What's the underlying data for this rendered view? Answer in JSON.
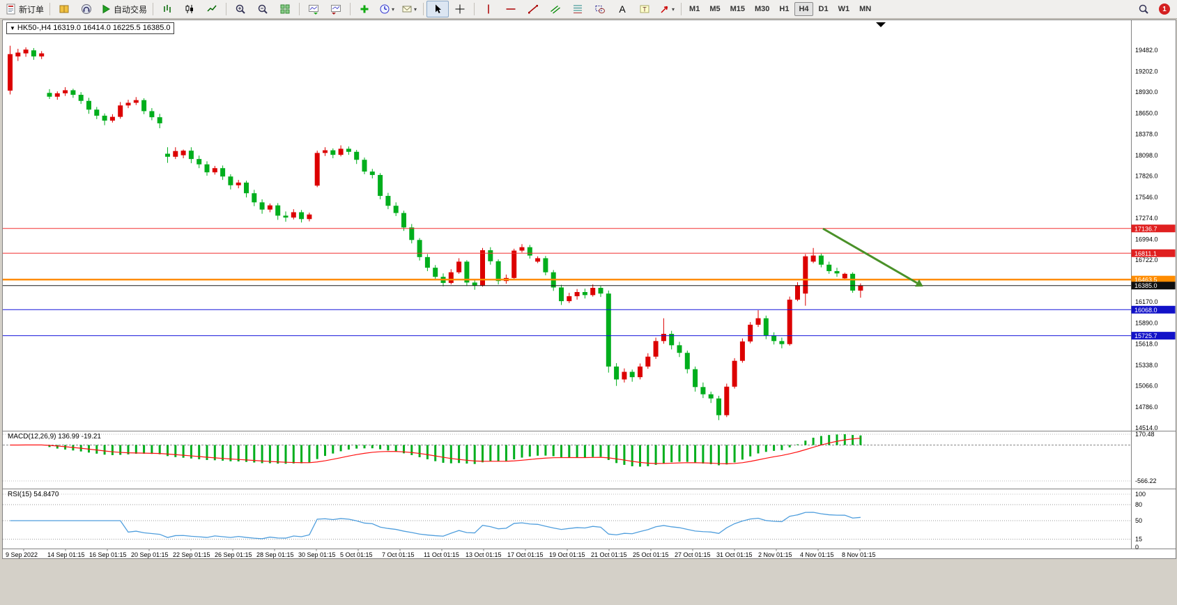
{
  "toolbar": {
    "groups": [
      [
        {
          "name": "new-order",
          "icon": "doc-plus",
          "label": "新订单"
        }
      ],
      [
        {
          "name": "market-watch",
          "icon": "book-yellow"
        },
        {
          "name": "data-window",
          "icon": "headset"
        },
        {
          "name": "auto-trading",
          "icon": "play-green",
          "label": "自动交易"
        }
      ],
      [
        {
          "name": "chart-bars",
          "icon": "bars"
        },
        {
          "name": "chart-candles",
          "icon": "candles"
        },
        {
          "name": "chart-line",
          "icon": "line"
        }
      ],
      [
        {
          "name": "zoom-in",
          "icon": "zoom-in"
        },
        {
          "name": "zoom-out",
          "icon": "zoom-out"
        },
        {
          "name": "tile-windows",
          "icon": "grid-green"
        }
      ],
      [
        {
          "name": "auto-scroll",
          "icon": "chart-scroll"
        },
        {
          "name": "chart-shift",
          "icon": "chart-shift"
        }
      ],
      [
        {
          "name": "indicators",
          "icon": "plus-green"
        },
        {
          "name": "periods",
          "icon": "clock",
          "dropdown": true
        },
        {
          "name": "templates",
          "icon": "chart-mail",
          "dropdown": true
        }
      ],
      [
        {
          "name": "cursor",
          "icon": "cursor",
          "active": true
        },
        {
          "name": "crosshair",
          "icon": "crosshair"
        }
      ],
      [
        {
          "name": "vertical-line",
          "icon": "vline"
        },
        {
          "name": "horizontal-line",
          "icon": "hline"
        },
        {
          "name": "trendline",
          "icon": "tline"
        },
        {
          "name": "equidistant-channel",
          "icon": "channel"
        },
        {
          "name": "fibonacci",
          "icon": "fibo"
        },
        {
          "name": "shapes",
          "icon": "shapes"
        },
        {
          "name": "text",
          "icon": "textA"
        },
        {
          "name": "text-label",
          "icon": "labelT"
        },
        {
          "name": "arrows",
          "icon": "arrow",
          "dropdown": true
        }
      ]
    ],
    "timeframes": {
      "options": [
        "M1",
        "M5",
        "M15",
        "M30",
        "H1",
        "H4",
        "D1",
        "W1",
        "MN"
      ],
      "active": "H4"
    },
    "right": {
      "notification_count": "1"
    }
  },
  "chart": {
    "symbol_marker": "▼",
    "symbol_text": "HK50-,H4  16319.0 16414.0 16225.5 16385.0",
    "macd_label": "MACD(12,26,9) 136.99 -19.21",
    "rsi_label": "RSI(15) 54.8470"
  },
  "colors": {
    "bull": "#dc0000",
    "bear": "#00ae1c",
    "macd_hist": "#00ae1c",
    "macd_signal": "#ff1010",
    "rsi_line": "#4f9edd",
    "resistance_line": "#f23030",
    "resistance_badge": "#e02020",
    "support_line": "#1414dc",
    "support_badge": "#1212c8",
    "pivot_line": "#ff8c00",
    "current_line": "#1a1a1a",
    "arrow": "#4a9128"
  },
  "chart_data": {
    "type": "candlestick",
    "symbol": "HK50-",
    "timeframe": "H4",
    "ohlc_display": {
      "open": "16319.0",
      "high": "16414.0",
      "low": "16225.5",
      "close": "16385.0"
    },
    "price_axis": {
      "ylim": [
        14475,
        19876
      ],
      "labels": [
        19482.0,
        19202.0,
        18930.0,
        18650.0,
        18378.0,
        18098.0,
        17826.0,
        17546.0,
        17274.0,
        16994.0,
        16722.0,
        16170.0,
        15890.0,
        15618.0,
        15338.0,
        15066.0,
        14786.0,
        14514.0
      ]
    },
    "hlines": [
      {
        "price": 17136.7,
        "label": "17136.7",
        "role": "resistance",
        "width": 1
      },
      {
        "price": 16811.1,
        "label": "16811.1",
        "role": "resistance",
        "width": 1
      },
      {
        "price": 16463.5,
        "label": "16463.5",
        "role": "pivot",
        "width": 2.5
      },
      {
        "price": 16385.0,
        "label": "16385.0",
        "role": "current",
        "width": 1
      },
      {
        "price": 16068.0,
        "label": "16068.0",
        "role": "support",
        "width": 1
      },
      {
        "price": 15725.7,
        "label": "15725.7",
        "role": "support",
        "width": 1
      }
    ],
    "annotations": [
      {
        "type": "trend-arrow",
        "from": [
          1177,
          299
        ],
        "to": [
          1312,
          377
        ]
      }
    ],
    "candles": [
      [
        18950,
        19540,
        18900,
        19430
      ],
      [
        19400,
        19500,
        19340,
        19450
      ],
      [
        19440,
        19520,
        19395,
        19490
      ],
      [
        19480,
        19510,
        19355,
        19400
      ],
      [
        19400,
        19470,
        19365,
        19440
      ],
      [
        18920,
        18970,
        18840,
        18870
      ],
      [
        18870,
        18940,
        18830,
        18915
      ],
      [
        18915,
        18995,
        18880,
        18955
      ],
      [
        18955,
        18975,
        18855,
        18895
      ],
      [
        18895,
        18930,
        18775,
        18815
      ],
      [
        18815,
        18855,
        18645,
        18700
      ],
      [
        18700,
        18735,
        18575,
        18620
      ],
      [
        18620,
        18650,
        18495,
        18555
      ],
      [
        18555,
        18640,
        18530,
        18605
      ],
      [
        18605,
        18800,
        18580,
        18755
      ],
      [
        18755,
        18830,
        18720,
        18790
      ],
      [
        18790,
        18865,
        18760,
        18825
      ],
      [
        18825,
        18850,
        18640,
        18680
      ],
      [
        18680,
        18720,
        18560,
        18600
      ],
      [
        18600,
        18645,
        18455,
        18520
      ],
      [
        18120,
        18205,
        18000,
        18080
      ],
      [
        18080,
        18205,
        18050,
        18155
      ],
      [
        18100,
        18175,
        18060,
        18160
      ],
      [
        18160,
        18205,
        17995,
        18050
      ],
      [
        18050,
        18095,
        17930,
        17980
      ],
      [
        17980,
        18020,
        17830,
        17875
      ],
      [
        17875,
        17960,
        17845,
        17930
      ],
      [
        17930,
        17965,
        17775,
        17820
      ],
      [
        17820,
        17850,
        17650,
        17705
      ],
      [
        17705,
        17775,
        17665,
        17740
      ],
      [
        17740,
        17765,
        17545,
        17600
      ],
      [
        17600,
        17645,
        17430,
        17480
      ],
      [
        17480,
        17520,
        17330,
        17385
      ],
      [
        17385,
        17465,
        17350,
        17440
      ],
      [
        17440,
        17470,
        17250,
        17305
      ],
      [
        17305,
        17360,
        17225,
        17280
      ],
      [
        17280,
        17390,
        17255,
        17350
      ],
      [
        17350,
        17380,
        17215,
        17260
      ],
      [
        17260,
        17345,
        17230,
        17320
      ],
      [
        17700,
        18160,
        17680,
        18130
      ],
      [
        18130,
        18205,
        18090,
        18165
      ],
      [
        18165,
        18190,
        18060,
        18105
      ],
      [
        18105,
        18230,
        18085,
        18185
      ],
      [
        18185,
        18215,
        18105,
        18145
      ],
      [
        18145,
        18170,
        17985,
        18040
      ],
      [
        18040,
        18070,
        17850,
        17885
      ],
      [
        17885,
        17920,
        17795,
        17840
      ],
      [
        17840,
        17865,
        17520,
        17565
      ],
      [
        17565,
        17605,
        17390,
        17435
      ],
      [
        17435,
        17480,
        17300,
        17340
      ],
      [
        17340,
        17370,
        17105,
        17150
      ],
      [
        17150,
        17195,
        16940,
        16985
      ],
      [
        16985,
        17010,
        16715,
        16760
      ],
      [
        16760,
        16800,
        16575,
        16620
      ],
      [
        16620,
        16655,
        16455,
        16500
      ],
      [
        16500,
        16545,
        16375,
        16420
      ],
      [
        16420,
        16600,
        16400,
        16560
      ],
      [
        16560,
        16745,
        16540,
        16700
      ],
      [
        16700,
        16720,
        16380,
        16425
      ],
      [
        16425,
        16455,
        16330,
        16385
      ],
      [
        16385,
        16880,
        16370,
        16850
      ],
      [
        16850,
        16890,
        16660,
        16705
      ],
      [
        16705,
        16730,
        16400,
        16445
      ],
      [
        16445,
        16530,
        16410,
        16485
      ],
      [
        16485,
        16870,
        16470,
        16845
      ],
      [
        16845,
        16930,
        16820,
        16890
      ],
      [
        16890,
        16920,
        16740,
        16780
      ],
      [
        16700,
        16770,
        16680,
        16745
      ],
      [
        16745,
        16775,
        16520,
        16560
      ],
      [
        16560,
        16590,
        16315,
        16360
      ],
      [
        16360,
        16395,
        16130,
        16180
      ],
      [
        16180,
        16290,
        16155,
        16245
      ],
      [
        16245,
        16340,
        16200,
        16300
      ],
      [
        16300,
        16345,
        16215,
        16260
      ],
      [
        16260,
        16400,
        16240,
        16355
      ],
      [
        16355,
        16380,
        16235,
        16280
      ],
      [
        16280,
        16320,
        15240,
        15320
      ],
      [
        15320,
        15365,
        15065,
        15150
      ],
      [
        15150,
        15295,
        15110,
        15250
      ],
      [
        15250,
        15280,
        15120,
        15180
      ],
      [
        15180,
        15360,
        15150,
        15320
      ],
      [
        15320,
        15495,
        15290,
        15450
      ],
      [
        15450,
        15700,
        15420,
        15655
      ],
      [
        15655,
        15955,
        15620,
        15750
      ],
      [
        15750,
        15790,
        15545,
        15600
      ],
      [
        15600,
        15645,
        15445,
        15500
      ],
      [
        15500,
        15530,
        15230,
        15285
      ],
      [
        15285,
        15320,
        14990,
        15050
      ],
      [
        15050,
        15110,
        14905,
        14955
      ],
      [
        14955,
        14990,
        14840,
        14900
      ],
      [
        14900,
        14935,
        14615,
        14680
      ],
      [
        14680,
        15095,
        14655,
        15055
      ],
      [
        15055,
        15430,
        15030,
        15395
      ],
      [
        15395,
        15690,
        15370,
        15650
      ],
      [
        15650,
        15905,
        15625,
        15870
      ],
      [
        15870,
        16060,
        15840,
        15955
      ],
      [
        15955,
        15990,
        15680,
        15730
      ],
      [
        15730,
        15770,
        15610,
        15655
      ],
      [
        15655,
        15700,
        15560,
        15615
      ],
      [
        15615,
        16240,
        15595,
        16200
      ],
      [
        16200,
        16430,
        16180,
        16390
      ],
      [
        16280,
        16800,
        16120,
        16770
      ],
      [
        16700,
        16880,
        16680,
        16780
      ],
      [
        16780,
        16805,
        16625,
        16660
      ],
      [
        16660,
        16700,
        16540,
        16575
      ],
      [
        16575,
        16620,
        16500,
        16545
      ],
      [
        16480,
        16555,
        16455,
        16540
      ],
      [
        16540,
        16560,
        16290,
        16319
      ],
      [
        16319,
        16414,
        16225.5,
        16385
      ]
    ],
    "indicators": [
      {
        "name": "MACD",
        "params": [
          12,
          26,
          9
        ],
        "values_display": [
          "136.99",
          "-19.21"
        ],
        "axis_labels": [
          "170.48",
          "-566.22"
        ]
      },
      {
        "name": "RSI",
        "params": [
          15
        ],
        "value_display": "54.8470",
        "axis_labels": [
          [
            100,
            680
          ],
          [
            80,
            695
          ],
          [
            50,
            718
          ],
          [
            15,
            744.6
          ],
          [
            0,
            756
          ]
        ]
      }
    ],
    "x_axis": {
      "labels": [
        "9 Sep 2022",
        "14 Sep 01:15",
        "16 Sep 01:15",
        "20 Sep 01:15",
        "22 Sep 01:15",
        "26 Sep 01:15",
        "28 Sep 01:15",
        "30 Sep 01:15",
        "5 Oct 01:15",
        "7 Oct 01:15",
        "11 Oct 01:15",
        "13 Oct 01:15",
        "17 Oct 01:15",
        "19 Oct 01:15",
        "21 Oct 01:15",
        "25 Oct 01:15",
        "27 Oct 01:15",
        "31 Oct 01:15",
        "2 Nov 01:15",
        "4 Nov 01:15",
        "8 Nov 01:15"
      ]
    }
  }
}
